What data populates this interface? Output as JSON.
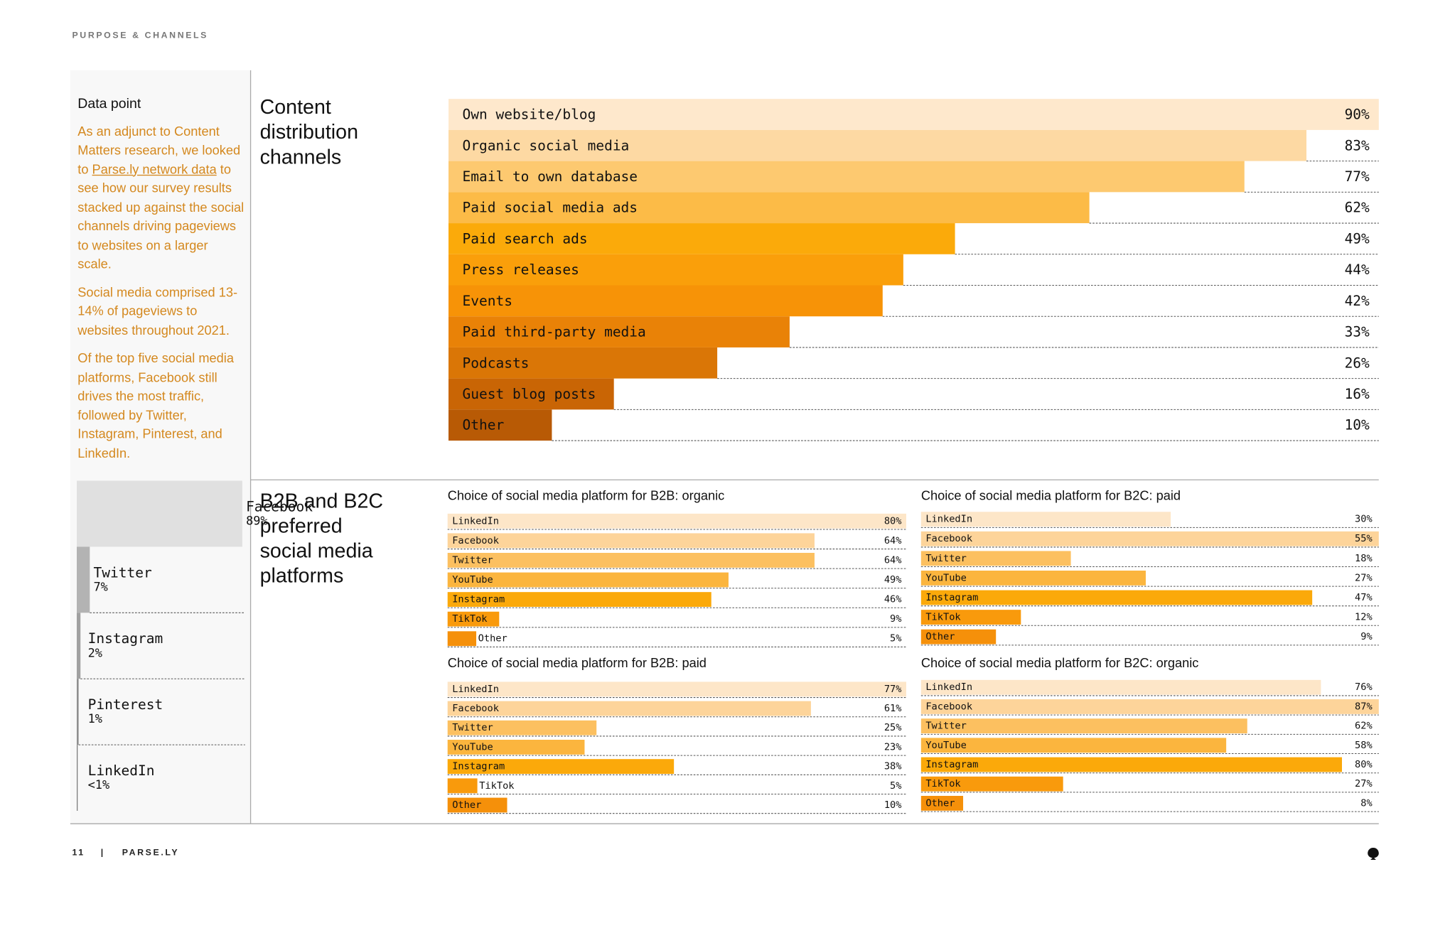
{
  "header": {
    "section": "PURPOSE & CHANNELS"
  },
  "sidebar": {
    "title": "Data point",
    "intro": {
      "before": "As an adjunct to Content Matters research, we looked to ",
      "link": "Parse.ly network data",
      "after": " to see how our survey results stacked up against the social channels driving pageviews to websites on a larger scale."
    },
    "paragraphs": [
      "Social media comprised 13-14% of pageviews to websites throughout 2021.",
      "Of the top five social media platforms, Facebook still drives the most traffic, followed by Twitter, Instagram, Pinterest, and LinkedIn."
    ]
  },
  "section_title": "B2B and B2C preferred social media platforms",
  "chart_data": [
    {
      "type": "bar",
      "title": "Content distribution channels",
      "categories": [
        "Own website/blog",
        "Organic social media",
        "Email to own database",
        "Paid social media ads",
        "Paid search ads",
        "Press releases",
        "Events",
        "Paid third-party media",
        "Podcasts",
        "Guest blog posts",
        "Other"
      ],
      "values": [
        90,
        83,
        77,
        62,
        49,
        44,
        42,
        33,
        26,
        16,
        10
      ],
      "value_labels": [
        "90%",
        "83%",
        "77%",
        "62%",
        "49%",
        "44%",
        "42%",
        "33%",
        "26%",
        "16%",
        "10%"
      ],
      "colors": [
        "#fee8cc",
        "#fdd9a3",
        "#fdc970",
        "#fcbb47",
        "#fbaa0a",
        "#fa9f0a",
        "#f79307",
        "#e98207",
        "#da7606",
        "#c96505",
        "#b85a05"
      ],
      "xlim": [
        0,
        90
      ]
    },
    {
      "type": "bar",
      "categories": [
        "Facebook",
        "Twitter",
        "Instagram",
        "Pinterest",
        "LinkedIn"
      ],
      "values": [
        89,
        7,
        2,
        1,
        0.5
      ],
      "value_labels": [
        "89%",
        "7%",
        "2%",
        "1%",
        "<1%"
      ],
      "colors": [
        "#e0e0e0",
        "#b3b3b3",
        "#a0a0a0",
        "#8e8e8e",
        "#7c7c7c"
      ],
      "xlim": [
        0,
        89
      ]
    },
    {
      "type": "bar",
      "title": "Choice of social media platform for B2B: organic",
      "categories": [
        "LinkedIn",
        "Facebook",
        "Twitter",
        "YouTube",
        "Instagram",
        "TikTok",
        "Other"
      ],
      "values": [
        80,
        64,
        64,
        49,
        46,
        9,
        5
      ],
      "value_labels": [
        "80%",
        "64%",
        "64%",
        "49%",
        "46%",
        "9%",
        "5%"
      ],
      "colors": [
        "#fde6c8",
        "#fdd49a",
        "#fcc060",
        "#fbb53e",
        "#fba90a",
        "#f99a0c",
        "#f5900a"
      ],
      "xlim": [
        0,
        80
      ]
    },
    {
      "type": "bar",
      "title": "Choice of social media platform for B2C: paid",
      "categories": [
        "LinkedIn",
        "Facebook",
        "Twitter",
        "YouTube",
        "Instagram",
        "TikTok",
        "Other"
      ],
      "values": [
        30,
        55,
        18,
        27,
        47,
        12,
        9
      ],
      "value_labels": [
        "30%",
        "55%",
        "18%",
        "27%",
        "47%",
        "12%",
        "9%"
      ],
      "colors": [
        "#fde6c8",
        "#fdd49a",
        "#fcc060",
        "#fbb53e",
        "#fba90a",
        "#f99a0c",
        "#f5900a"
      ],
      "xlim": [
        0,
        55
      ]
    },
    {
      "type": "bar",
      "title": "Choice of social media platform for B2B: paid",
      "categories": [
        "LinkedIn",
        "Facebook",
        "Twitter",
        "YouTube",
        "Instagram",
        "TikTok",
        "Other"
      ],
      "values": [
        77,
        61,
        25,
        23,
        38,
        5,
        10
      ],
      "value_labels": [
        "77%",
        "61%",
        "25%",
        "23%",
        "38%",
        "5%",
        "10%"
      ],
      "colors": [
        "#fde6c8",
        "#fdd49a",
        "#fcc060",
        "#fbb53e",
        "#fba90a",
        "#f99a0c",
        "#f5900a"
      ],
      "xlim": [
        0,
        77
      ]
    },
    {
      "type": "bar",
      "title": "Choice of social media platform for B2C: organic",
      "categories": [
        "LinkedIn",
        "Facebook",
        "Twitter",
        "YouTube",
        "Instagram",
        "TikTok",
        "Other"
      ],
      "values": [
        76,
        87,
        62,
        58,
        80,
        27,
        8
      ],
      "value_labels": [
        "76%",
        "87%",
        "62%",
        "58%",
        "80%",
        "27%",
        "8%"
      ],
      "colors": [
        "#fde6c8",
        "#fdd49a",
        "#fcc060",
        "#fbb53e",
        "#fba90a",
        "#f99a0c",
        "#f5900a"
      ],
      "xlim": [
        0,
        87
      ]
    }
  ],
  "footer": {
    "page": "11",
    "separator": "|",
    "brand": "PARSE.LY"
  }
}
